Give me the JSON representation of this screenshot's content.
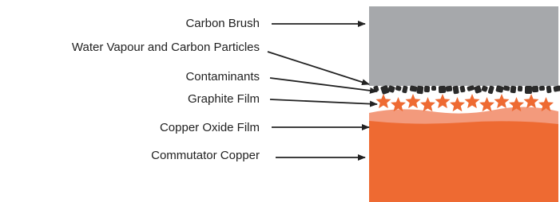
{
  "labels": [
    "Carbon Brush",
    "Water Vapour and Carbon Particles",
    "Contaminants",
    "Graphite Film",
    "Copper Oxide Film",
    "Commutator Copper"
  ]
}
